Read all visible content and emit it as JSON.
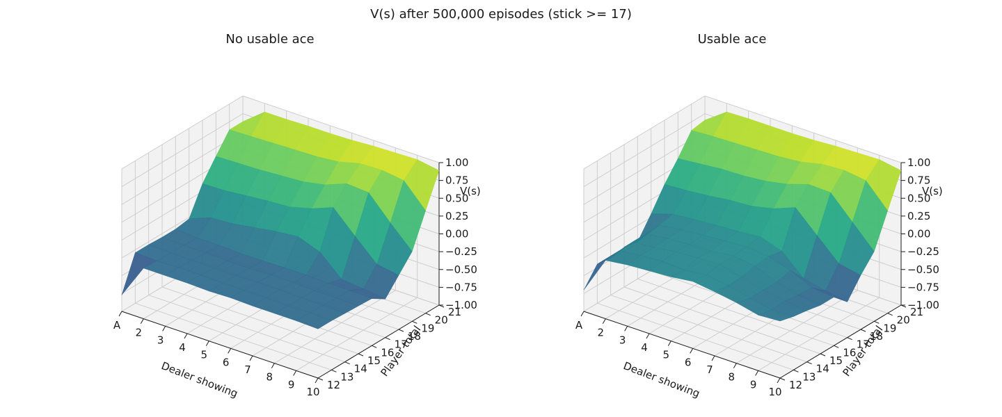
{
  "figure": {
    "title": "V(s) after 500,000 episodes (stick >= 17)"
  },
  "chart_data": [
    {
      "type": "surface3d",
      "title": "No usable ace",
      "xlabel": "Dealer showing",
      "ylabel": "Player total",
      "zlabel": "V(s)",
      "x_ticks": [
        "A",
        "2",
        "3",
        "4",
        "5",
        "6",
        "7",
        "8",
        "9",
        "10"
      ],
      "y_ticks": [
        "12",
        "13",
        "14",
        "15",
        "16",
        "17",
        "18",
        "19",
        "20",
        "21"
      ],
      "z_ticks": [
        "−1.00",
        "−0.75",
        "−0.50",
        "−0.25",
        "0.00",
        "0.25",
        "0.50",
        "0.75",
        "1.00"
      ],
      "zlim": [
        -1,
        1
      ],
      "colormap": "viridis",
      "grid": true,
      "z": [
        [
          -0.77,
          -0.29,
          -0.29,
          -0.29,
          -0.3,
          -0.29,
          -0.3,
          -0.3,
          -0.3,
          -0.31
        ],
        [
          -0.29,
          -0.3,
          -0.29,
          -0.29,
          -0.3,
          -0.3,
          -0.3,
          -0.31,
          -0.3,
          -0.31
        ],
        [
          -0.29,
          -0.3,
          -0.3,
          -0.31,
          -0.31,
          -0.3,
          -0.3,
          -0.31,
          -0.31,
          -0.32
        ],
        [
          -0.3,
          -0.31,
          -0.31,
          -0.32,
          -0.32,
          -0.31,
          -0.31,
          -0.32,
          -0.32,
          -0.33
        ],
        [
          -0.3,
          -0.32,
          -0.32,
          -0.33,
          -0.33,
          -0.32,
          -0.32,
          -0.33,
          -0.33,
          -0.34
        ],
        [
          -0.27,
          -0.15,
          -0.13,
          -0.08,
          -0.03,
          0.0,
          -0.11,
          -0.39,
          -0.42,
          -0.46
        ],
        [
          0.11,
          0.12,
          0.15,
          0.18,
          0.2,
          0.28,
          0.4,
          0.1,
          -0.19,
          -0.24
        ],
        [
          0.38,
          0.39,
          0.4,
          0.42,
          0.44,
          0.5,
          0.62,
          0.6,
          0.28,
          -0.02
        ],
        [
          0.64,
          0.65,
          0.66,
          0.67,
          0.68,
          0.71,
          0.79,
          0.8,
          0.76,
          0.44
        ],
        [
          0.64,
          0.88,
          0.88,
          0.89,
          0.89,
          0.9,
          0.92,
          0.93,
          0.94,
          0.89
        ]
      ]
    },
    {
      "type": "surface3d",
      "title": "Usable ace",
      "xlabel": "Dealer showing",
      "ylabel": "Player total",
      "zlabel": "V(s)",
      "x_ticks": [
        "A",
        "2",
        "3",
        "4",
        "5",
        "6",
        "7",
        "8",
        "9",
        "10"
      ],
      "y_ticks": [
        "12",
        "13",
        "14",
        "15",
        "16",
        "17",
        "18",
        "19",
        "20",
        "21"
      ],
      "z_ticks": [
        "−1.00",
        "−0.75",
        "−0.50",
        "−0.25",
        "0.00",
        "0.25",
        "0.50",
        "0.75",
        "1.00"
      ],
      "zlim": [
        -1,
        1
      ],
      "colormap": "viridis",
      "grid": true,
      "z": [
        [
          -0.7,
          -0.18,
          -0.14,
          -0.12,
          -0.1,
          -0.06,
          -0.1,
          -0.15,
          -0.22,
          -0.2
        ],
        [
          -0.45,
          -0.16,
          -0.12,
          -0.1,
          -0.12,
          -0.08,
          -0.13,
          -0.2,
          -0.26,
          -0.25
        ],
        [
          -0.48,
          -0.15,
          -0.12,
          -0.08,
          -0.06,
          -0.05,
          -0.12,
          -0.2,
          -0.25,
          -0.28
        ],
        [
          -0.44,
          -0.15,
          -0.11,
          -0.09,
          -0.08,
          -0.04,
          -0.08,
          -0.2,
          -0.28,
          -0.32
        ],
        [
          -0.48,
          -0.14,
          -0.1,
          -0.07,
          -0.05,
          -0.03,
          -0.06,
          -0.15,
          -0.29,
          -0.32
        ],
        [
          -0.2,
          -0.1,
          -0.07,
          -0.05,
          -0.03,
          0.0,
          -0.1,
          -0.38,
          -0.45,
          -0.5
        ],
        [
          0.1,
          0.12,
          0.15,
          0.19,
          0.21,
          0.28,
          0.4,
          0.11,
          -0.18,
          -0.24
        ],
        [
          0.35,
          0.38,
          0.41,
          0.42,
          0.45,
          0.51,
          0.61,
          0.6,
          0.29,
          -0.02
        ],
        [
          0.63,
          0.65,
          0.66,
          0.67,
          0.68,
          0.71,
          0.78,
          0.8,
          0.76,
          0.44
        ],
        [
          0.66,
          0.88,
          0.89,
          0.89,
          0.89,
          0.9,
          0.92,
          0.93,
          0.94,
          0.89
        ]
      ]
    }
  ]
}
